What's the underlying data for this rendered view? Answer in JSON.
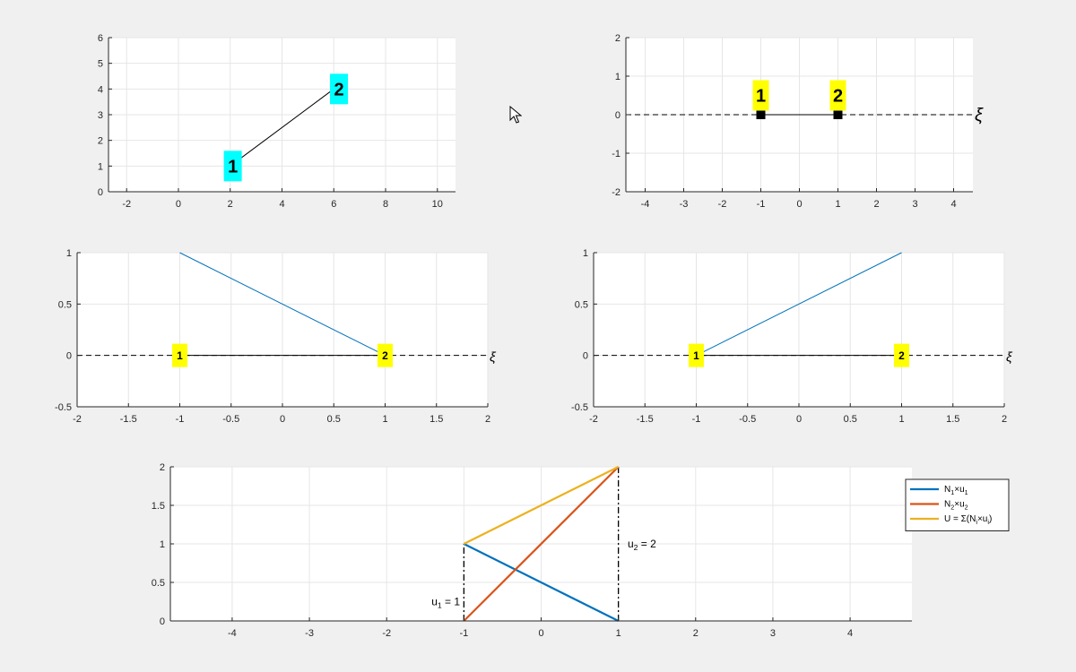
{
  "chart_data": [
    {
      "type": "line",
      "id": "physical-element",
      "xlim": [
        -2.7,
        10.7
      ],
      "ylim": [
        0,
        6
      ],
      "xticks": [
        -2,
        0,
        2,
        4,
        6,
        8,
        10
      ],
      "yticks": [
        0,
        1,
        2,
        3,
        4,
        5,
        6
      ],
      "xtick_labels": [
        "-2",
        "0",
        "2",
        "4",
        "6",
        "8",
        "10"
      ],
      "ytick_labels": [
        "0",
        "1",
        "2",
        "3",
        "4",
        "5",
        "6"
      ],
      "grid": true,
      "series": [
        {
          "x": [
            2,
            6
          ],
          "y": [
            1,
            4
          ],
          "color": "#000000"
        }
      ],
      "node_labels": [
        {
          "text": "1",
          "x": 2.1,
          "y": 1.0,
          "bg": "#00ffff"
        },
        {
          "text": "2",
          "x": 6.2,
          "y": 4.0,
          "bg": "#00ffff"
        }
      ]
    },
    {
      "type": "line",
      "id": "reference-element",
      "xlim": [
        -4.5,
        4.5
      ],
      "ylim": [
        -2,
        2
      ],
      "xticks": [
        -4,
        -3,
        -2,
        -1,
        0,
        1,
        2,
        3,
        4
      ],
      "yticks": [
        -2,
        -1,
        0,
        1,
        2
      ],
      "xtick_labels": [
        "-4",
        "-3",
        "-2",
        "-1",
        "0",
        "1",
        "2",
        "3",
        "4"
      ],
      "ytick_labels": [
        "-2",
        "-1",
        "0",
        "1",
        "2"
      ],
      "grid": true,
      "axis_symbol": "ξ",
      "series": [
        {
          "x": [
            -1,
            1
          ],
          "y": [
            0,
            0
          ],
          "color": "#000000",
          "markers": true
        }
      ],
      "node_labels": [
        {
          "text": "1",
          "x": -1,
          "y": 0.5,
          "bg": "#ffff00"
        },
        {
          "text": "2",
          "x": 1,
          "y": 0.5,
          "bg": "#ffff00"
        }
      ]
    },
    {
      "type": "line",
      "id": "shape-function-n1",
      "xlim": [
        -2,
        2
      ],
      "ylim": [
        -0.5,
        1
      ],
      "xticks": [
        -2,
        -1.5,
        -1,
        -0.5,
        0,
        0.5,
        1,
        1.5,
        2
      ],
      "yticks": [
        -0.5,
        0,
        0.5,
        1
      ],
      "xtick_labels": [
        "-2",
        "-1.5",
        "-1",
        "-0.5",
        "0",
        "0.5",
        "1",
        "1.5",
        "2"
      ],
      "ytick_labels": [
        "-0.5",
        "0",
        "0.5",
        "1"
      ],
      "grid": true,
      "axis_symbol": "ξ",
      "series": [
        {
          "x": [
            -1,
            1
          ],
          "y": [
            0,
            0
          ],
          "color": "#000000"
        },
        {
          "x": [
            -1,
            1
          ],
          "y": [
            1,
            0
          ],
          "color": "#0072bd"
        }
      ],
      "node_labels": [
        {
          "text": "1",
          "x": -1,
          "y": 0,
          "bg": "#ffff00"
        },
        {
          "text": "2",
          "x": 1,
          "y": 0,
          "bg": "#ffff00"
        }
      ]
    },
    {
      "type": "line",
      "id": "shape-function-n2",
      "xlim": [
        -2,
        2
      ],
      "ylim": [
        -0.5,
        1
      ],
      "xticks": [
        -2,
        -1.5,
        -1,
        -0.5,
        0,
        0.5,
        1,
        1.5,
        2
      ],
      "yticks": [
        -0.5,
        0,
        0.5,
        1
      ],
      "xtick_labels": [
        "-2",
        "-1.5",
        "-1",
        "-0.5",
        "0",
        "0.5",
        "1",
        "1.5",
        "2"
      ],
      "ytick_labels": [
        "-0.5",
        "0",
        "0.5",
        "1"
      ],
      "grid": true,
      "axis_symbol": "ξ",
      "series": [
        {
          "x": [
            -1,
            1
          ],
          "y": [
            0,
            0
          ],
          "color": "#000000"
        },
        {
          "x": [
            -1,
            1
          ],
          "y": [
            0,
            1
          ],
          "color": "#0072bd"
        }
      ],
      "node_labels": [
        {
          "text": "1",
          "x": -1,
          "y": 0,
          "bg": "#ffff00"
        },
        {
          "text": "2",
          "x": 1,
          "y": 0,
          "bg": "#ffff00"
        }
      ]
    },
    {
      "type": "line",
      "id": "interpolation",
      "xlim": [
        -4.8,
        4.8
      ],
      "ylim": [
        0,
        2
      ],
      "xticks": [
        -4,
        -3,
        -2,
        -1,
        0,
        1,
        2,
        3,
        4
      ],
      "yticks": [
        0,
        0.5,
        1,
        1.5,
        2
      ],
      "xtick_labels": [
        "-4",
        "-3",
        "-2",
        "-1",
        "0",
        "1",
        "2",
        "3",
        "4"
      ],
      "ytick_labels": [
        "0",
        "0.5",
        "1",
        "1.5",
        "2"
      ],
      "grid": true,
      "legend_position": "top-right",
      "series": [
        {
          "name": "N₁×u₁",
          "legend_parts": [
            [
              "N",
              ""
            ],
            [
              "1",
              "sub"
            ],
            [
              "×u",
              ""
            ],
            [
              "1",
              "sub"
            ]
          ],
          "x": [
            -1,
            1
          ],
          "y": [
            1,
            0
          ],
          "color": "#0072bd"
        },
        {
          "name": "N₂×u₂",
          "legend_parts": [
            [
              "N",
              ""
            ],
            [
              "2",
              "sub"
            ],
            [
              "×u",
              ""
            ],
            [
              "2",
              "sub"
            ]
          ],
          "x": [
            -1,
            1
          ],
          "y": [
            0,
            2
          ],
          "color": "#d95319"
        },
        {
          "name": "U = Σ(Nᵢ×uᵢ)",
          "legend_parts": [
            [
              "U = Σ(N",
              ""
            ],
            [
              "i",
              "sub"
            ],
            [
              "×u",
              ""
            ],
            [
              "i",
              "sub"
            ],
            [
              ")",
              ""
            ]
          ],
          "x": [
            -1,
            1
          ],
          "y": [
            1,
            2
          ],
          "color": "#edb120"
        }
      ],
      "guides": [
        {
          "x": [
            -1,
            -1
          ],
          "y": [
            0,
            1
          ]
        },
        {
          "x": [
            1,
            1
          ],
          "y": [
            0,
            2
          ]
        }
      ],
      "annotations": [
        {
          "name": "u1-label",
          "parts": [
            [
              "u",
              ""
            ],
            [
              "1",
              "sub"
            ],
            [
              " = 1",
              ""
            ]
          ],
          "x": -1.05,
          "y": 0.25,
          "anchor": "end"
        },
        {
          "name": "u2-label",
          "parts": [
            [
              "u",
              ""
            ],
            [
              "2",
              "sub"
            ],
            [
              " = 2",
              ""
            ]
          ],
          "x": 1.12,
          "y": 1.0,
          "anchor": "start"
        }
      ]
    }
  ]
}
